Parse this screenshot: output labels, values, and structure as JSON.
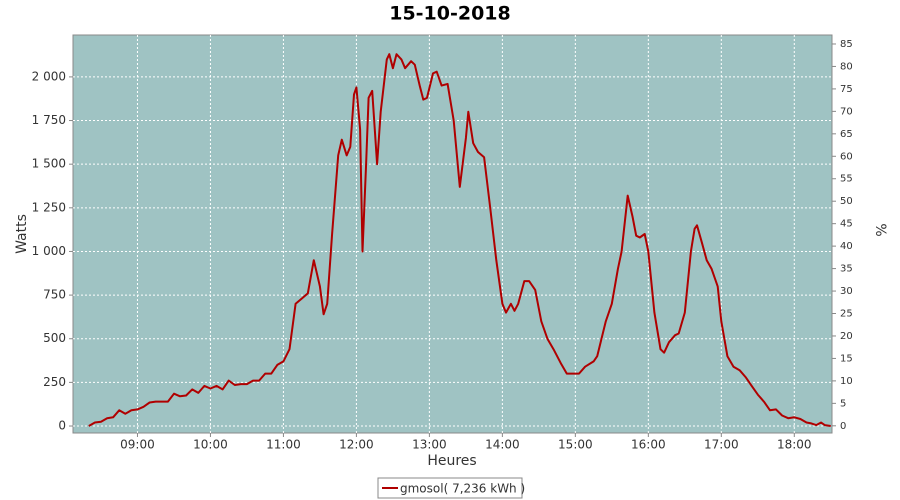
{
  "chart_data": {
    "type": "line",
    "title": "15-10-2018",
    "x_label": "Heures",
    "y_label": "Watts",
    "y2_label": "%",
    "x": [
      500,
      505,
      510,
      515,
      520,
      525,
      530,
      535,
      540,
      545,
      550,
      555,
      560,
      565,
      570,
      575,
      580,
      585,
      590,
      595,
      600,
      605,
      610,
      615,
      620,
      625,
      630,
      635,
      640,
      645,
      650,
      655,
      660,
      665,
      670,
      675,
      680,
      685,
      690,
      693,
      696,
      700,
      705,
      708,
      712,
      715,
      718,
      720,
      723,
      725,
      728,
      730,
      733,
      737,
      740,
      745,
      747,
      750,
      753,
      757,
      760,
      765,
      768,
      772,
      775,
      778,
      783,
      786,
      790,
      795,
      800,
      805,
      810,
      812,
      816,
      820,
      825,
      830,
      835,
      840,
      843,
      847,
      850,
      853,
      858,
      862,
      867,
      872,
      877,
      882,
      888,
      893,
      898,
      903,
      908,
      915,
      918,
      925,
      930,
      935,
      938,
      943,
      947,
      950,
      953,
      957,
      960,
      965,
      970,
      973,
      977,
      982,
      985,
      990,
      995,
      998,
      1000,
      1004,
      1008,
      1012,
      1017,
      1020,
      1025,
      1030,
      1035,
      1040,
      1045,
      1050,
      1055,
      1060,
      1065,
      1070,
      1075,
      1080,
      1085,
      1090,
      1094,
      1098,
      1102,
      1105,
      1110
    ],
    "series": [
      {
        "name": "gmosol( 7,236 kWh )",
        "color": "#b00000",
        "values": [
          0,
          20,
          25,
          45,
          50,
          90,
          70,
          90,
          95,
          110,
          135,
          140,
          140,
          140,
          185,
          170,
          175,
          210,
          190,
          230,
          215,
          230,
          210,
          260,
          235,
          240,
          240,
          260,
          260,
          300,
          300,
          350,
          370,
          440,
          700,
          730,
          760,
          950,
          800,
          640,
          700,
          1100,
          1550,
          1640,
          1550,
          1600,
          1900,
          1940,
          1700,
          1000,
          1500,
          1880,
          1920,
          1500,
          1800,
          2100,
          2130,
          2050,
          2130,
          2100,
          2050,
          2090,
          2070,
          1950,
          1870,
          1880,
          2020,
          2030,
          1950,
          1960,
          1750,
          1370,
          1650,
          1800,
          1620,
          1570,
          1540,
          1250,
          950,
          700,
          650,
          700,
          660,
          700,
          830,
          830,
          780,
          600,
          500,
          440,
          360,
          300,
          300,
          300,
          340,
          370,
          400,
          600,
          700,
          900,
          1000,
          1320,
          1200,
          1090,
          1080,
          1100,
          1000,
          650,
          440,
          420,
          480,
          520,
          530,
          650,
          1000,
          1130,
          1150,
          1050,
          950,
          900,
          800,
          600,
          400,
          340,
          320,
          280,
          230,
          180,
          140,
          90,
          95,
          60,
          45,
          50,
          40,
          20,
          15,
          5,
          20,
          5,
          0
        ]
      }
    ],
    "xlim": [
      487,
      1111
    ],
    "xticks": [
      {
        "value": 540,
        "label": "09:00"
      },
      {
        "value": 600,
        "label": "10:00"
      },
      {
        "value": 660,
        "label": "11:00"
      },
      {
        "value": 720,
        "label": "12:00"
      },
      {
        "value": 780,
        "label": "13:00"
      },
      {
        "value": 840,
        "label": "14:00"
      },
      {
        "value": 900,
        "label": "15:00"
      },
      {
        "value": 960,
        "label": "16:00"
      },
      {
        "value": 1020,
        "label": "17:00"
      },
      {
        "value": 1080,
        "label": "18:00"
      }
    ],
    "ylim": [
      -40,
      2240
    ],
    "yticks": [
      0,
      250,
      500,
      750,
      {
        "value": 1000,
        "label": "1 000"
      },
      {
        "value": 1250,
        "label": "1 250"
      },
      {
        "value": 1500,
        "label": "1 500"
      },
      {
        "value": 1750,
        "label": "1 750"
      },
      {
        "value": 2000,
        "label": "2 000"
      }
    ],
    "y2lim": [
      -1.6,
      87
    ],
    "y2ticks": [
      0,
      5,
      10,
      15,
      20,
      25,
      30,
      35,
      40,
      45,
      50,
      55,
      60,
      65,
      70,
      75,
      80,
      85
    ],
    "grid": true,
    "legend": "bottom"
  }
}
